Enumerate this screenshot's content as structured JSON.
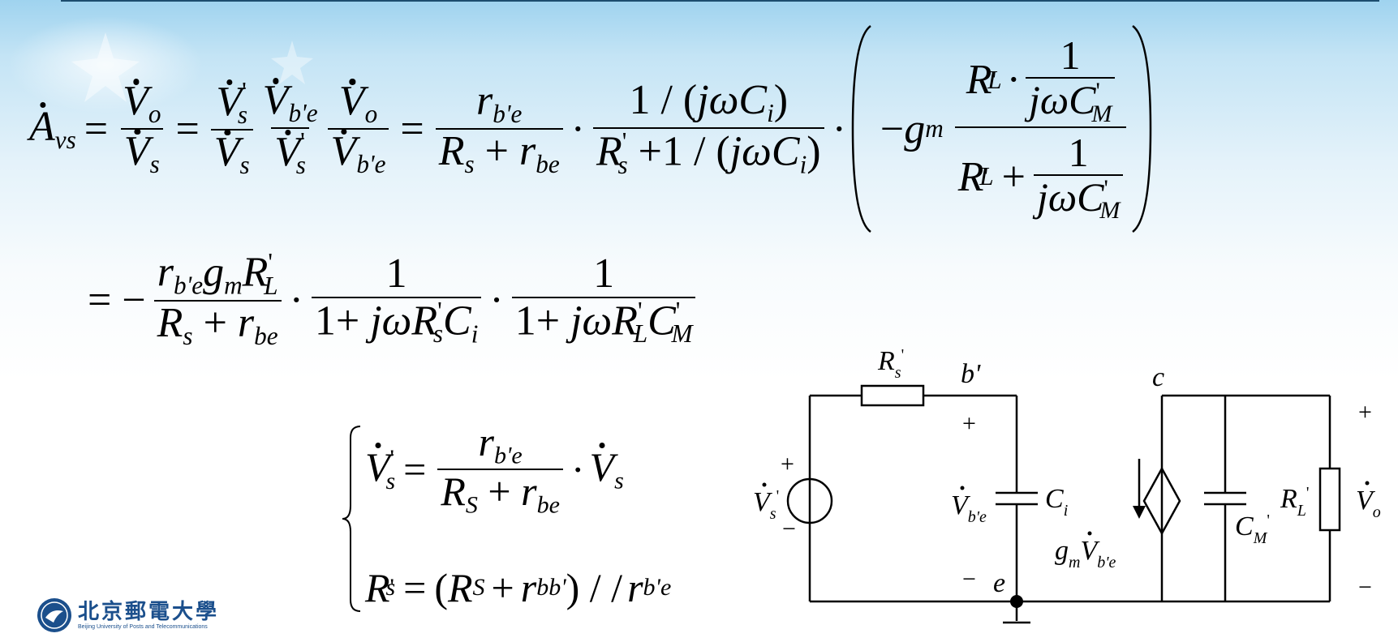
{
  "slide": {
    "accent_color": "#1d4d6e",
    "background_color": "#c4e4f5"
  },
  "logo": {
    "name_cn": "北京郵電大學",
    "name_en": "Beijing University of Posts and Telecommunications",
    "icon": "university-seal-icon"
  },
  "circuit": {
    "source_plus": "+",
    "source_minus": "−",
    "node_b": "b'",
    "node_c": "c",
    "node_e": "e",
    "vbe_plus": "+",
    "vbe_minus": "−",
    "out_plus": "+",
    "out_minus": "−"
  }
}
